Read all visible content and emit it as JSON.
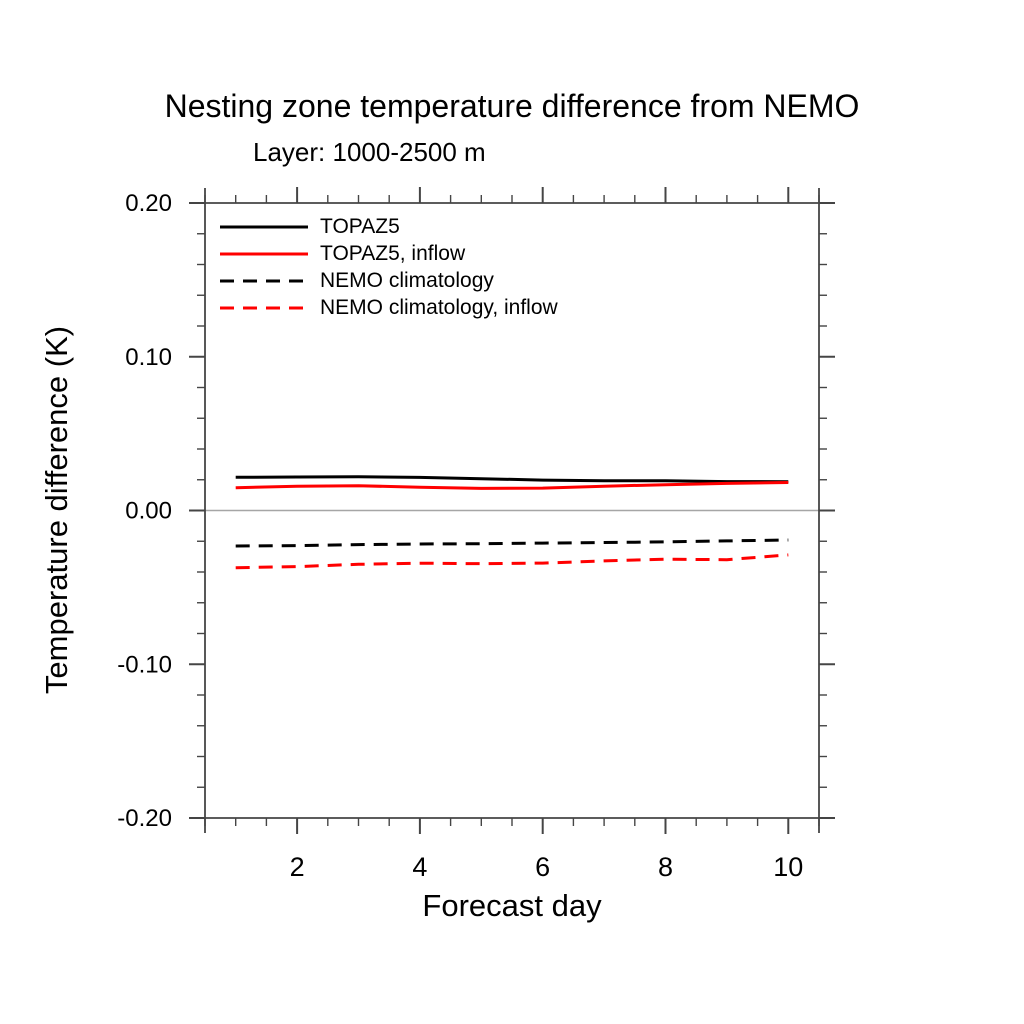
{
  "title": "Nesting zone temperature difference from NEMO",
  "subtitle": "Layer: 1000-2500 m",
  "colors": {
    "axis": "#454545",
    "zero_line": "#a6a6a6",
    "background": "#ffffff",
    "series_black": "#000000",
    "series_red": "#ff0000"
  },
  "chart_data": {
    "type": "line",
    "title": "Nesting zone temperature difference from NEMO",
    "subtitle": "Layer: 1000-2500 m",
    "xlabel": "Forecast day",
    "ylabel": "Temperature difference (K)",
    "x": [
      1,
      2,
      3,
      4,
      5,
      6,
      7,
      8,
      9,
      10
    ],
    "xlim": [
      0.5,
      10.5
    ],
    "ylim": [
      -0.2,
      0.2
    ],
    "xticks_major": [
      2,
      4,
      6,
      8,
      10
    ],
    "xtick_labels": [
      "2",
      "4",
      "6",
      "8",
      "10"
    ],
    "xtick_minor_step": 0.5,
    "yticks_major": [
      -0.2,
      -0.1,
      0.0,
      0.1,
      0.2
    ],
    "ytick_labels": [
      "-0.20",
      "-0.10",
      "0.00",
      "0.10",
      "0.20"
    ],
    "ytick_minor_step": 0.02,
    "grid": false,
    "zero_reference_line": true,
    "legend_position": "top-left-inside",
    "series": [
      {
        "name": "TOPAZ5",
        "color": "#000000",
        "style": "solid",
        "values": [
          0.0216,
          0.0218,
          0.022,
          0.0215,
          0.0207,
          0.0198,
          0.0193,
          0.0194,
          0.0188,
          0.0187
        ]
      },
      {
        "name": "TOPAZ5, inflow",
        "color": "#ff0000",
        "style": "solid",
        "values": [
          0.0148,
          0.0158,
          0.0161,
          0.0151,
          0.0144,
          0.0146,
          0.0158,
          0.0168,
          0.0176,
          0.0182
        ]
      },
      {
        "name": "NEMO climatology",
        "color": "#000000",
        "style": "dashed",
        "values": [
          -0.0231,
          -0.0228,
          -0.0222,
          -0.0218,
          -0.0216,
          -0.0212,
          -0.0208,
          -0.0204,
          -0.0198,
          -0.0192
        ]
      },
      {
        "name": "NEMO climatology, inflow",
        "color": "#ff0000",
        "style": "dashed",
        "values": [
          -0.0372,
          -0.0365,
          -0.035,
          -0.0343,
          -0.0346,
          -0.0342,
          -0.0328,
          -0.0317,
          -0.032,
          -0.0289
        ]
      }
    ]
  }
}
